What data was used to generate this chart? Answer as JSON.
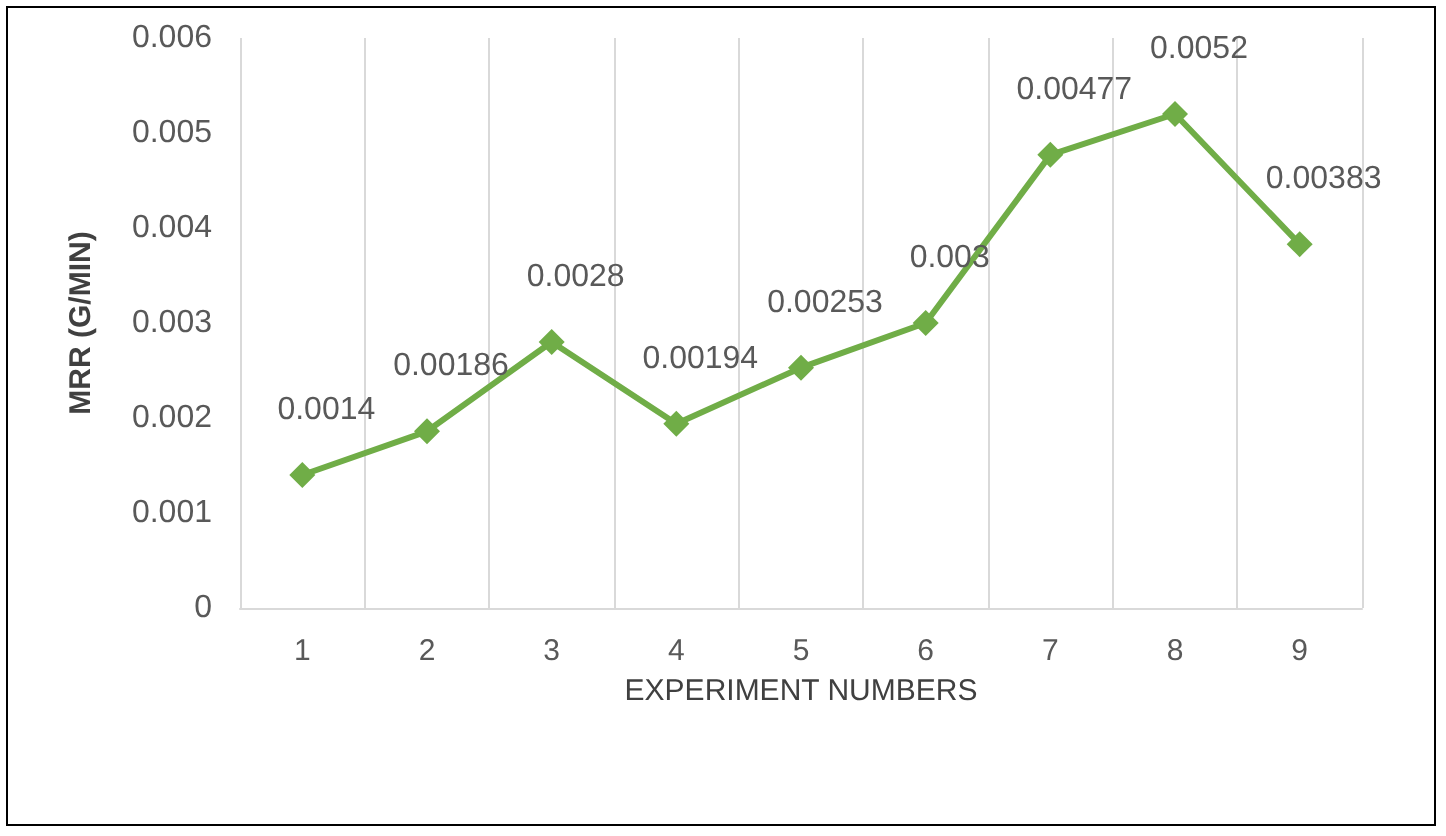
{
  "chart_data": {
    "type": "line",
    "xlabel": "EXPERIMENT NUMBERS",
    "ylabel": "MRR (G/MIN)",
    "categories": [
      "1",
      "2",
      "3",
      "4",
      "5",
      "6",
      "7",
      "8",
      "9"
    ],
    "series": [
      {
        "color": "#70ad47",
        "values": [
          0.0014,
          0.00186,
          0.0028,
          0.00194,
          0.00253,
          0.003,
          0.00477,
          0.0052,
          0.00383
        ]
      }
    ],
    "ylim": [
      0,
      0.006
    ],
    "yticks": [
      0,
      0.001,
      0.002,
      0.003,
      0.004,
      0.005,
      0.006
    ],
    "grid": "x",
    "marker": "diamond",
    "line_style": "solid",
    "data_labels": true
  }
}
